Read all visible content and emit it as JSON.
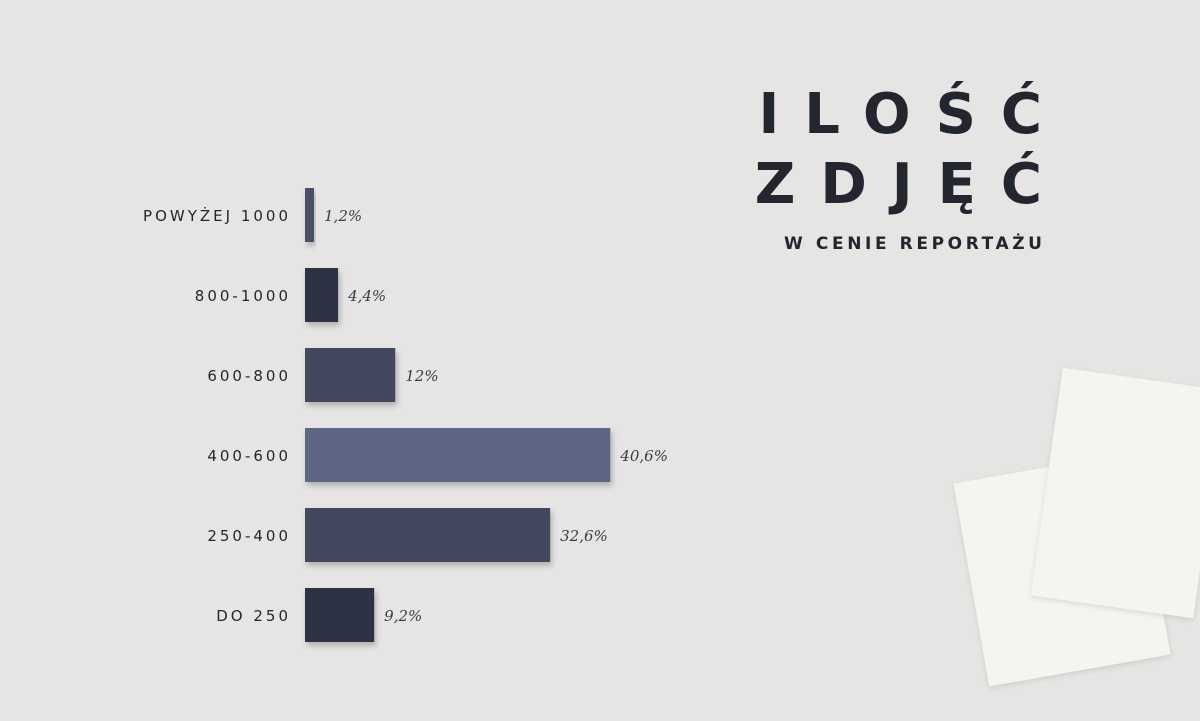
{
  "title": {
    "line1": "ILOŚĆ",
    "line2": "ZDJĘĆ",
    "subtitle": "W CENIE REPORTAŻU"
  },
  "decor": {
    "icon": "paper-sheets-icon"
  },
  "colors": {
    "background": "#e6e5e3",
    "text": "#23262f",
    "value_text": "#3a3d47",
    "bars": [
      "#4a5167",
      "#2f3345",
      "#434a5e",
      "#5d6684",
      "#434a5e",
      "#2f3345"
    ]
  },
  "chart_data": {
    "type": "bar",
    "orientation": "horizontal",
    "categories": [
      "POWYŻEJ 1000",
      "800-1000",
      "600-800",
      "400-600",
      "250-400",
      "DO 250"
    ],
    "values": [
      1.2,
      4.4,
      12,
      40.6,
      32.6,
      9.2
    ],
    "value_labels": [
      "1,2%",
      "4,4%",
      "12%",
      "40,6%",
      "32,6%",
      "9,2%"
    ],
    "title": "ILOŚĆ ZDJĘĆ",
    "subtitle": "W CENIE REPORTAŻU",
    "xlabel": "",
    "ylabel": "",
    "grid": false,
    "legend": "none"
  }
}
